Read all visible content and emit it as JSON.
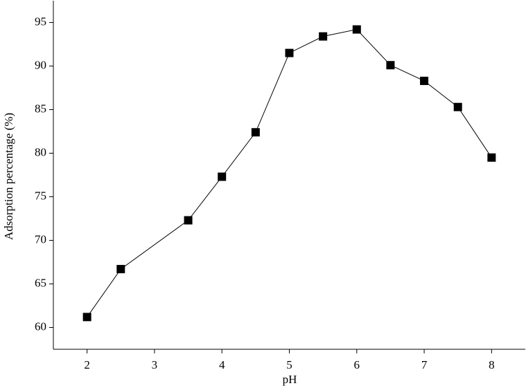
{
  "chart_data": {
    "type": "line",
    "x_label": "pH",
    "y_label": "Adsorption percentage (%)",
    "x": [
      2,
      2.5,
      3.5,
      4,
      4.5,
      5,
      5.5,
      6,
      6.5,
      7,
      7.5,
      8
    ],
    "series": [
      {
        "color": "#000000",
        "values": [
          61.2,
          66.7,
          72.3,
          77.3,
          82.4,
          91.5,
          93.4,
          94.2,
          90.1,
          88.3,
          85.3,
          79.5
        ]
      }
    ],
    "xlim": [
      1.5,
      8.5
    ],
    "xticks": [
      2,
      3,
      4,
      5,
      6,
      7,
      8
    ],
    "ylim": [
      57.5,
      97.5
    ],
    "yticks": [
      60,
      65,
      70,
      75,
      80,
      85,
      90,
      95
    ],
    "marker": "square",
    "grid": false
  }
}
